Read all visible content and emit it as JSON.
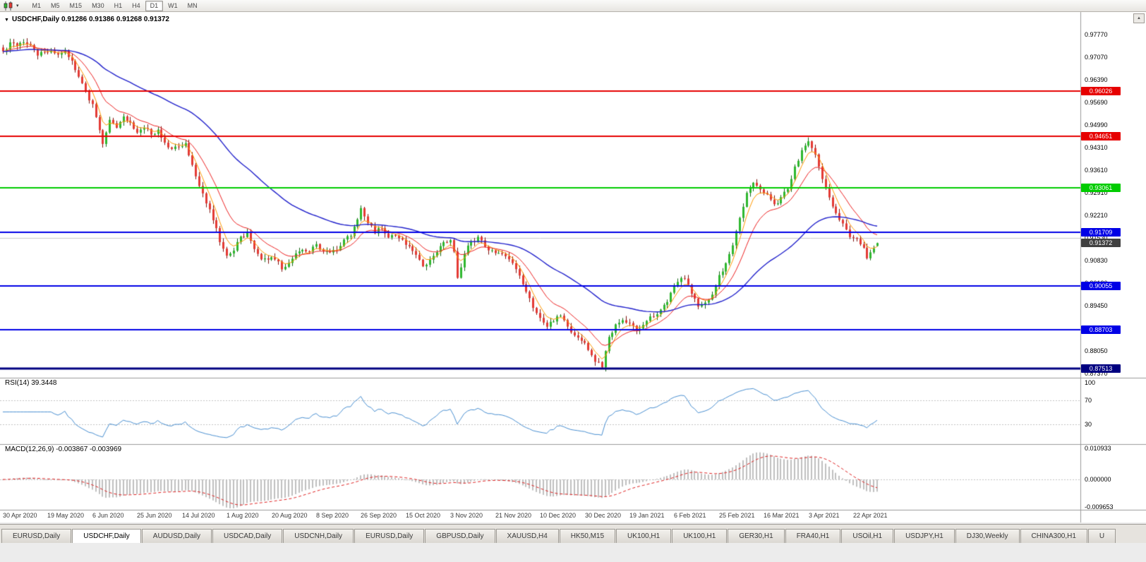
{
  "toolbar": {
    "timeframes": [
      {
        "label": "M1"
      },
      {
        "label": "M5"
      },
      {
        "label": "M15"
      },
      {
        "label": "M30"
      },
      {
        "label": "H1"
      },
      {
        "label": "H4"
      },
      {
        "label": "D1",
        "active": true
      },
      {
        "label": "W1"
      },
      {
        "label": "MN"
      }
    ]
  },
  "chart_header": {
    "title": "USDCHF,Daily 0.91286 0.91386 0.91268 0.91372"
  },
  "indicators": {
    "rsi_label": "RSI(14) 39.3448",
    "macd_label": "MACD(12,26,9) -0.003867 -0.003969"
  },
  "chart_data": {
    "type": "candlestick",
    "symbol": "USDCHF",
    "period": "Daily",
    "ohlc": {
      "open": 0.91286,
      "high": 0.91386,
      "low": 0.91268,
      "close": 0.91372
    },
    "price_axis": {
      "labels": [
        "0.97770",
        "0.97070",
        "0.96390",
        "0.95690",
        "0.94990",
        "0.94310",
        "0.93610",
        "0.92910",
        "0.92210",
        "0.91530",
        "0.90830",
        "0.90130",
        "0.89450",
        "0.88750",
        "0.88050",
        "0.87370"
      ]
    },
    "date_axis": [
      "30 Apr 2020",
      "19 May 2020",
      "6 Jun 2020",
      "25 Jun 2020",
      "14 Jul 2020",
      "1 Aug 2020",
      "20 Aug 2020",
      "8 Sep 2020",
      "26 Sep 2020",
      "15 Oct 2020",
      "3 Nov 2020",
      "21 Nov 2020",
      "10 Dec 2020",
      "30 Dec 2020",
      "19 Jan 2021",
      "6 Feb 2021",
      "25 Feb 2021",
      "16 Mar 2021",
      "3 Apr 2021",
      "22 Apr 2021"
    ],
    "horizontal_levels": [
      {
        "price": 0.96026,
        "label": "0.96026",
        "color": "#e60000",
        "width": 2
      },
      {
        "price": 0.94651,
        "label": "0.94651",
        "color": "#e60000",
        "width": 2
      },
      {
        "price": 0.93061,
        "label": "0.93061",
        "color": "#00cc00",
        "width": 2
      },
      {
        "price": 0.91709,
        "label": "0.91709",
        "color": "#0000e6",
        "width": 2
      },
      {
        "price": 0.90055,
        "label": "0.90055",
        "color": "#0000e6",
        "width": 2
      },
      {
        "price": 0.88703,
        "label": "0.88703",
        "color": "#0000e6",
        "width": 2
      },
      {
        "price": 0.87513,
        "label": "0.87513",
        "color": "#000080",
        "width": 3
      }
    ],
    "grid_level": {
      "price": 0.9153
    },
    "current_price": {
      "value": 0.91372,
      "label": "0.91372",
      "badge_color": "#404040"
    },
    "candles": {
      "count": 255,
      "up_color": "#2eb82e",
      "up_border": "#156615",
      "down_color": "#e43a34",
      "down_border": "#7e120e",
      "waypoints": [
        [
          0,
          0.972
        ],
        [
          2,
          0.975
        ],
        [
          4,
          0.9738
        ],
        [
          6,
          0.9755
        ],
        [
          8,
          0.9742
        ],
        [
          10,
          0.971
        ],
        [
          12,
          0.9726
        ],
        [
          14,
          0.973
        ],
        [
          16,
          0.9712
        ],
        [
          18,
          0.9722
        ],
        [
          20,
          0.97
        ],
        [
          22,
          0.9645
        ],
        [
          24,
          0.9603
        ],
        [
          26,
          0.956
        ],
        [
          28,
          0.948
        ],
        [
          29,
          0.9435
        ],
        [
          31,
          0.951
        ],
        [
          33,
          0.9495
        ],
        [
          35,
          0.9525
        ],
        [
          37,
          0.9505
        ],
        [
          39,
          0.948
        ],
        [
          41,
          0.9495
        ],
        [
          43,
          0.9468
        ],
        [
          45,
          0.948
        ],
        [
          47,
          0.9445
        ],
        [
          49,
          0.9425
        ],
        [
          51,
          0.9435
        ],
        [
          53,
          0.9442
        ],
        [
          55,
          0.938
        ],
        [
          57,
          0.9315
        ],
        [
          59,
          0.926
        ],
        [
          61,
          0.921
        ],
        [
          63,
          0.9145
        ],
        [
          65,
          0.9105
        ],
        [
          67,
          0.9118
        ],
        [
          69,
          0.9152
        ],
        [
          71,
          0.9165
        ],
        [
          73,
          0.9118
        ],
        [
          75,
          0.9092
        ],
        [
          77,
          0.9085
        ],
        [
          79,
          0.9092
        ],
        [
          81,
          0.906
        ],
        [
          83,
          0.9078
        ],
        [
          85,
          0.9108
        ],
        [
          87,
          0.9122
        ],
        [
          89,
          0.9112
        ],
        [
          91,
          0.913
        ],
        [
          93,
          0.9118
        ],
        [
          95,
          0.9102
        ],
        [
          97,
          0.9118
        ],
        [
          99,
          0.9142
        ],
        [
          101,
          0.9165
        ],
        [
          103,
          0.921
        ],
        [
          104,
          0.9243
        ],
        [
          106,
          0.9198
        ],
        [
          108,
          0.9172
        ],
        [
          110,
          0.9185
        ],
        [
          112,
          0.916
        ],
        [
          114,
          0.9165
        ],
        [
          116,
          0.9148
        ],
        [
          118,
          0.9128
        ],
        [
          120,
          0.9095
        ],
        [
          122,
          0.9072
        ],
        [
          124,
          0.9082
        ],
        [
          126,
          0.9112
        ],
        [
          128,
          0.9135
        ],
        [
          130,
          0.9148
        ],
        [
          131,
          0.9115
        ],
        [
          132,
          0.903
        ],
        [
          134,
          0.9108
        ],
        [
          136,
          0.914
        ],
        [
          138,
          0.9152
        ],
        [
          140,
          0.9128
        ],
        [
          142,
          0.9112
        ],
        [
          144,
          0.9108
        ],
        [
          146,
          0.9102
        ],
        [
          148,
          0.9072
        ],
        [
          150,
          0.9038
        ],
        [
          152,
          0.8988
        ],
        [
          154,
          0.8942
        ],
        [
          156,
          0.8902
        ],
        [
          158,
          0.8878
        ],
        [
          160,
          0.8902
        ],
        [
          162,
          0.8918
        ],
        [
          164,
          0.8878
        ],
        [
          166,
          0.8852
        ],
        [
          168,
          0.8838
        ],
        [
          170,
          0.8812
        ],
        [
          172,
          0.8778
        ],
        [
          174,
          0.8758
        ],
        [
          176,
          0.8848
        ],
        [
          178,
          0.8882
        ],
        [
          180,
          0.8902
        ],
        [
          182,
          0.8888
        ],
        [
          184,
          0.8872
        ],
        [
          186,
          0.8888
        ],
        [
          188,
          0.8908
        ],
        [
          190,
          0.8922
        ],
        [
          192,
          0.8942
        ],
        [
          194,
          0.8982
        ],
        [
          196,
          0.9018
        ],
        [
          198,
          0.9032
        ],
        [
          200,
          0.8988
        ],
        [
          202,
          0.8942
        ],
        [
          204,
          0.8958
        ],
        [
          206,
          0.8982
        ],
        [
          208,
          0.9038
        ],
        [
          210,
          0.9072
        ],
        [
          212,
          0.9128
        ],
        [
          214,
          0.9212
        ],
        [
          216,
          0.9288
        ],
        [
          218,
          0.9328
        ],
        [
          220,
          0.9298
        ],
        [
          222,
          0.9282
        ],
        [
          224,
          0.9252
        ],
        [
          226,
          0.9278
        ],
        [
          228,
          0.9308
        ],
        [
          230,
          0.9368
        ],
        [
          232,
          0.9418
        ],
        [
          234,
          0.9445
        ],
        [
          236,
          0.9408
        ],
        [
          238,
          0.9338
        ],
        [
          240,
          0.9278
        ],
        [
          242,
          0.9228
        ],
        [
          244,
          0.9192
        ],
        [
          246,
          0.9162
        ],
        [
          248,
          0.9148
        ],
        [
          250,
          0.9118
        ],
        [
          251,
          0.9088
        ],
        [
          252,
          0.9105
        ],
        [
          253,
          0.9125
        ],
        [
          254,
          0.91372
        ]
      ]
    },
    "moving_averages": [
      {
        "name": "ma-fast",
        "type": "ema",
        "period": 5,
        "color": "#ff9900"
      },
      {
        "name": "ma-medium",
        "type": "ema",
        "period": 13,
        "color": "#ee2222"
      },
      {
        "name": "ma-slow",
        "type": "ema",
        "period": 50,
        "color": "#2222cc"
      }
    ],
    "rsi": {
      "period": 14,
      "current": 39.3448,
      "color": "#4a90d2",
      "levels": [
        "100",
        "70",
        "30"
      ],
      "level_values": [
        100,
        70,
        30
      ]
    },
    "macd": {
      "fast": 12,
      "slow": 26,
      "signal": 9,
      "main_current": -0.003867,
      "signal_current": -0.003969,
      "histogram_color": "#bfbfbf",
      "signal_color": "#e02020",
      "axis_labels": [
        "0.010933",
        "0.000000",
        "-0.009653"
      ],
      "axis_values": [
        0.010933,
        0,
        -0.009653
      ]
    }
  },
  "tabs": {
    "active_index": 1,
    "items": [
      "EURUSD,Daily",
      "USDCHF,Daily",
      "AUDUSD,Daily",
      "USDCAD,Daily",
      "USDCNH,Daily",
      "EURUSD,Daily",
      "GBPUSD,Daily",
      "XAUUSD,H4",
      "HK50,M15",
      "UK100,H1",
      "UK100,H1",
      "GER30,H1",
      "FRA40,H1",
      "USOil,H1",
      "USDJPY,H1",
      "DJ30,Weekly",
      "CHINA300,H1",
      "U"
    ]
  }
}
